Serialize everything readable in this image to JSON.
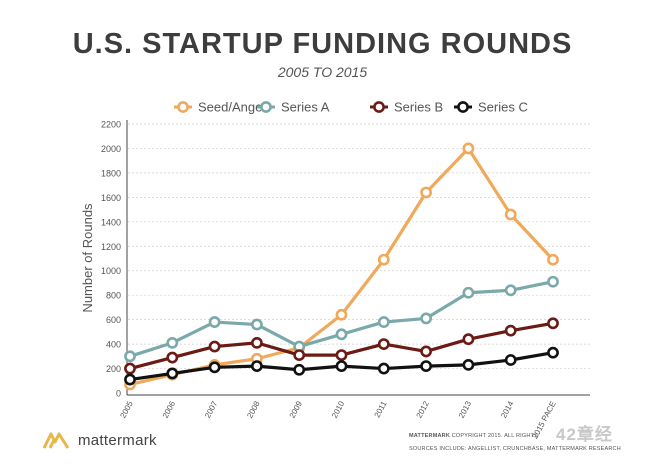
{
  "chart_data": {
    "type": "line",
    "title": "U.S. STARTUP FUNDING ROUNDS",
    "subtitle": "2005 TO 2015",
    "xlabel": "",
    "ylabel": "Number of Rounds",
    "categories": [
      "2005",
      "2006",
      "2007",
      "2008",
      "2009",
      "2010",
      "2011",
      "2012",
      "2013",
      "2014",
      "2015 PACE"
    ],
    "ylim": [
      0,
      2200
    ],
    "yticks": [
      0,
      200,
      400,
      600,
      800,
      1000,
      1200,
      1400,
      1600,
      1800,
      2000,
      2200
    ],
    "grid": true,
    "legend_position": "top",
    "series": [
      {
        "name": "Seed/Angel",
        "color": "#f0a95a",
        "values": [
          70,
          150,
          230,
          280,
          370,
          640,
          1090,
          1640,
          2000,
          1460,
          1090
        ]
      },
      {
        "name": "Series A",
        "color": "#7aa8ab",
        "values": [
          300,
          410,
          580,
          560,
          380,
          480,
          580,
          610,
          820,
          840,
          910
        ]
      },
      {
        "name": "Series B",
        "color": "#6b1a14",
        "values": [
          200,
          290,
          380,
          410,
          310,
          310,
          400,
          340,
          440,
          510,
          570
        ]
      },
      {
        "name": "Series C",
        "color": "#111111",
        "values": [
          110,
          160,
          210,
          220,
          190,
          220,
          200,
          220,
          230,
          270,
          330
        ]
      }
    ]
  },
  "branding": {
    "logo_text": "mattermark",
    "logo_color": "#e8b64a",
    "footer_line1_bold": "MATTERMARK",
    "footer_line1_rest": "COPYRIGHT 2015. ALL RIGHTS",
    "footer_line2": "SOURCES INCLUDE: ANGELLIST, CRUNCHBASE, MATTERMARK RESEARCH",
    "watermark": "42章经"
  }
}
